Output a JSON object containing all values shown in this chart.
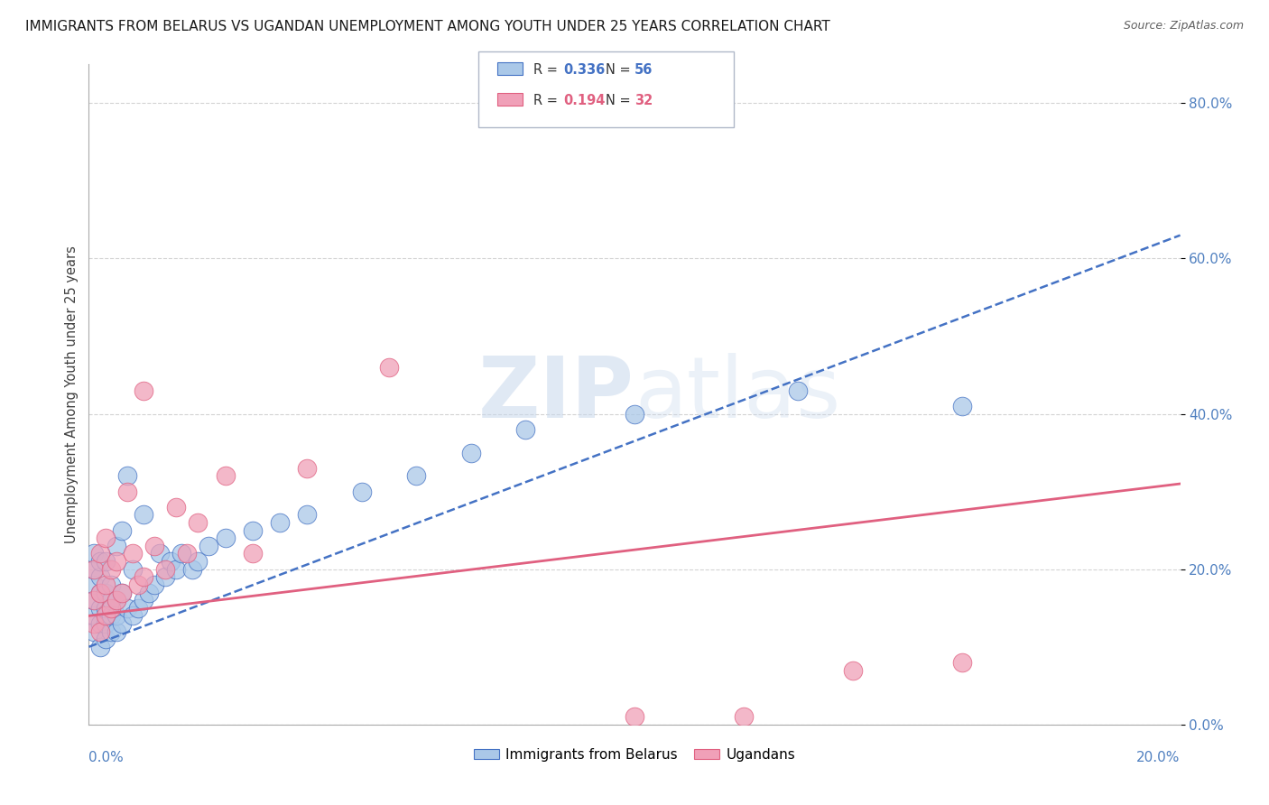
{
  "title": "IMMIGRANTS FROM BELARUS VS UGANDAN UNEMPLOYMENT AMONG YOUTH UNDER 25 YEARS CORRELATION CHART",
  "source": "Source: ZipAtlas.com",
  "ylabel": "Unemployment Among Youth under 25 years",
  "legend_label1": "Immigrants from Belarus",
  "legend_label2": "Ugandans",
  "R1": "0.336",
  "N1": "56",
  "R2": "0.194",
  "N2": "32",
  "color_blue": "#aac8e8",
  "color_pink": "#f0a0b8",
  "line_color_blue": "#4472c4",
  "line_color_pink": "#e06080",
  "tick_color": "#5080c0",
  "watermark_color": "#c8d8ec",
  "xlim": [
    0.0,
    0.2
  ],
  "ylim": [
    0.0,
    0.85
  ],
  "ytick_vals": [
    0.0,
    0.2,
    0.4,
    0.6,
    0.8
  ],
  "ytick_labels": [
    "0.0%",
    "20.0%",
    "40.0%",
    "60.0%",
    "80.0%"
  ],
  "blue_x": [
    0.001,
    0.001,
    0.001,
    0.001,
    0.001,
    0.001,
    0.002,
    0.002,
    0.002,
    0.002,
    0.002,
    0.002,
    0.003,
    0.003,
    0.003,
    0.003,
    0.003,
    0.004,
    0.004,
    0.004,
    0.004,
    0.005,
    0.005,
    0.005,
    0.005,
    0.006,
    0.006,
    0.006,
    0.007,
    0.007,
    0.008,
    0.008,
    0.009,
    0.01,
    0.01,
    0.011,
    0.012,
    0.013,
    0.014,
    0.015,
    0.016,
    0.017,
    0.019,
    0.02,
    0.022,
    0.025,
    0.03,
    0.035,
    0.04,
    0.05,
    0.06,
    0.07,
    0.08,
    0.1,
    0.13,
    0.16
  ],
  "blue_y": [
    0.12,
    0.14,
    0.16,
    0.18,
    0.2,
    0.22,
    0.1,
    0.13,
    0.15,
    0.17,
    0.19,
    0.21,
    0.11,
    0.13,
    0.15,
    0.17,
    0.21,
    0.12,
    0.14,
    0.16,
    0.18,
    0.12,
    0.14,
    0.16,
    0.23,
    0.13,
    0.17,
    0.25,
    0.15,
    0.32,
    0.14,
    0.2,
    0.15,
    0.16,
    0.27,
    0.17,
    0.18,
    0.22,
    0.19,
    0.21,
    0.2,
    0.22,
    0.2,
    0.21,
    0.23,
    0.24,
    0.25,
    0.26,
    0.27,
    0.3,
    0.32,
    0.35,
    0.38,
    0.4,
    0.43,
    0.41
  ],
  "pink_x": [
    0.001,
    0.001,
    0.001,
    0.002,
    0.002,
    0.002,
    0.003,
    0.003,
    0.003,
    0.004,
    0.004,
    0.005,
    0.005,
    0.006,
    0.007,
    0.008,
    0.009,
    0.01,
    0.012,
    0.014,
    0.016,
    0.018,
    0.025,
    0.03,
    0.04,
    0.055,
    0.1,
    0.12,
    0.14,
    0.16,
    0.01,
    0.02
  ],
  "pink_y": [
    0.13,
    0.16,
    0.2,
    0.12,
    0.17,
    0.22,
    0.14,
    0.18,
    0.24,
    0.15,
    0.2,
    0.16,
    0.21,
    0.17,
    0.3,
    0.22,
    0.18,
    0.19,
    0.23,
    0.2,
    0.28,
    0.22,
    0.32,
    0.22,
    0.33,
    0.46,
    0.01,
    0.01,
    0.07,
    0.08,
    0.43,
    0.26
  ],
  "blue_trend_x0": 0.0,
  "blue_trend_x1": 0.2,
  "blue_trend_y0": 0.1,
  "blue_trend_y1": 0.63,
  "pink_trend_x0": 0.0,
  "pink_trend_x1": 0.2,
  "pink_trend_y0": 0.14,
  "pink_trend_y1": 0.31
}
